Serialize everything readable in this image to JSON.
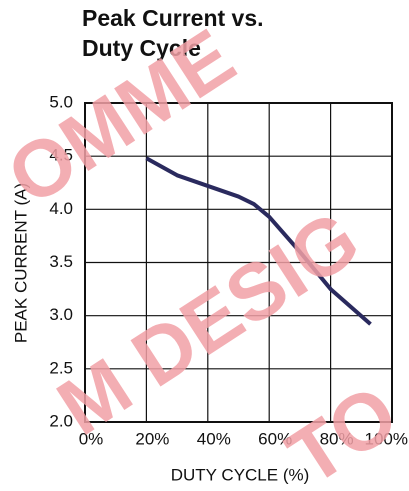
{
  "chart_data": {
    "type": "line",
    "title": [
      "Peak Current vs.",
      "Duty Cycle"
    ],
    "x_label": "DUTY CYCLE (%)",
    "y_label": "PEAK CURRENT (A)",
    "watermark": [
      "OMME",
      "M DESIG",
      "TO"
    ],
    "x": [
      20,
      30,
      40,
      50,
      55,
      60,
      70,
      80,
      93
    ],
    "series": [
      {
        "name": "Peak Current",
        "color": "#2a2a5e",
        "values": [
          4.48,
          4.32,
          4.22,
          4.12,
          4.05,
          3.93,
          3.6,
          3.25,
          2.92
        ]
      }
    ],
    "xlim": [
      0,
      100
    ],
    "xticks": [
      {
        "value": 0,
        "label": "0%"
      },
      {
        "value": 20,
        "label": "20%"
      },
      {
        "value": 40,
        "label": "40%"
      },
      {
        "value": 60,
        "label": "60%"
      },
      {
        "value": 80,
        "label": "80%"
      },
      {
        "value": 100,
        "label": "100%"
      }
    ],
    "ylim": [
      2,
      5
    ],
    "yticks": [
      {
        "value": 2,
        "label": "2.0"
      },
      {
        "value": 2.5,
        "label": "2.5"
      },
      {
        "value": 3,
        "label": "3.0"
      },
      {
        "value": 3.5,
        "label": "3.5"
      },
      {
        "value": 4,
        "label": "4.0"
      },
      {
        "value": 4.5,
        "label": "4.5"
      },
      {
        "value": 5,
        "label": "5.0"
      }
    ],
    "grid": true
  }
}
